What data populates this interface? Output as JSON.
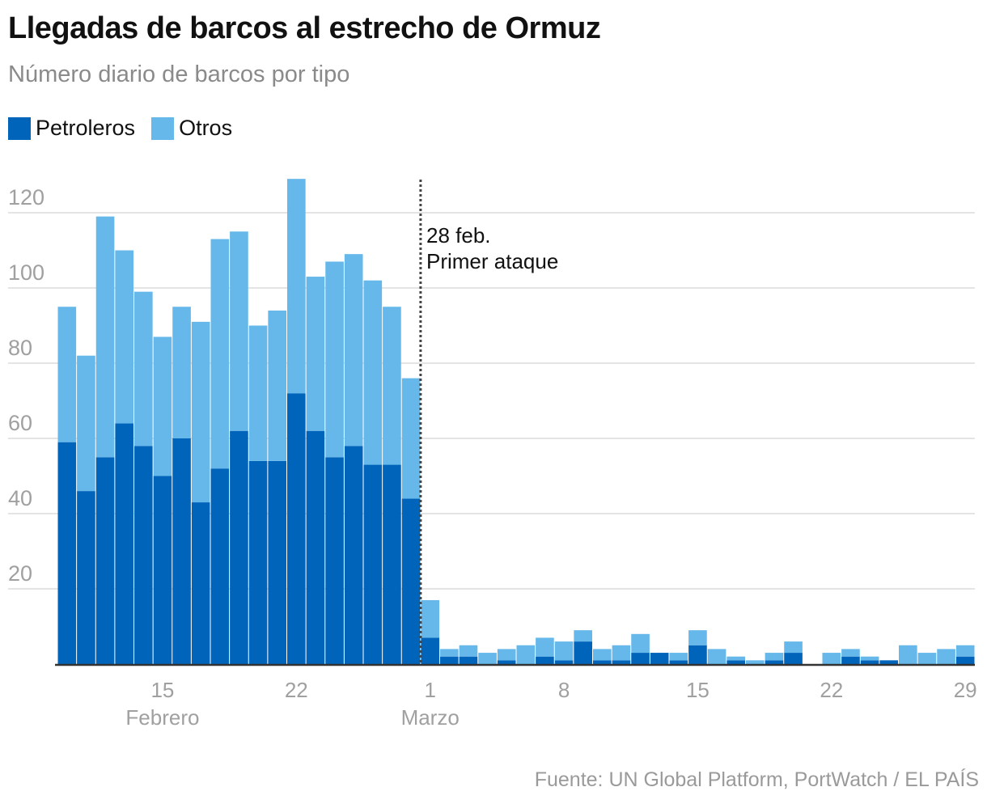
{
  "chart_data": {
    "type": "bar",
    "stacked": true,
    "title": "Llegadas de barcos al estrecho de Ormuz",
    "subtitle": "Número diario de barcos por tipo",
    "ylim": [
      0,
      130
    ],
    "yticks": [
      20,
      40,
      60,
      80,
      100,
      120
    ],
    "grid": true,
    "legend_placement": "top-left",
    "categories": [
      "10 feb",
      "11 feb",
      "12 feb",
      "13 feb",
      "14 feb",
      "15 feb",
      "16 feb",
      "17 feb",
      "18 feb",
      "19 feb",
      "20 feb",
      "21 feb",
      "22 feb",
      "23 feb",
      "24 feb",
      "25 feb",
      "26 feb",
      "27 feb",
      "28 feb",
      "1 mar",
      "2 mar",
      "3 mar",
      "4 mar",
      "5 mar",
      "6 mar",
      "7 mar",
      "8 mar",
      "9 mar",
      "10 mar",
      "11 mar",
      "12 mar",
      "13 mar",
      "14 mar",
      "15 mar",
      "16 mar",
      "17 mar",
      "18 mar",
      "19 mar",
      "20 mar",
      "21 mar",
      "22 mar",
      "23 mar",
      "24 mar",
      "25 mar",
      "26 mar",
      "27 mar",
      "28 mar",
      "29 mar"
    ],
    "series": [
      {
        "name": "Petroleros",
        "color": "#0064bb",
        "values": [
          59,
          46,
          55,
          64,
          58,
          50,
          60,
          43,
          52,
          62,
          54,
          54,
          72,
          62,
          55,
          58,
          53,
          53,
          44,
          7,
          2,
          2,
          0,
          1,
          0,
          2,
          1,
          6,
          1,
          1,
          3,
          3,
          1,
          5,
          0,
          1,
          0,
          1,
          3,
          0,
          0,
          2,
          1,
          1,
          0,
          0,
          0,
          2
        ]
      },
      {
        "name": "Otros",
        "color": "#66b8ea",
        "values": [
          36,
          36,
          64,
          46,
          41,
          37,
          35,
          48,
          61,
          53,
          36,
          40,
          57,
          41,
          52,
          51,
          49,
          42,
          32,
          10,
          2,
          3,
          3,
          3,
          5,
          5,
          5,
          3,
          3,
          4,
          5,
          0,
          2,
          4,
          4,
          1,
          1,
          2,
          3,
          0,
          3,
          2,
          1,
          0,
          5,
          3,
          4,
          3
        ]
      }
    ],
    "xtick_labels": [
      {
        "index": 5,
        "label": "15",
        "month": "Febrero"
      },
      {
        "index": 12,
        "label": "22"
      },
      {
        "index": 19,
        "label": "1",
        "month": "Marzo"
      },
      {
        "index": 26,
        "label": "8"
      },
      {
        "index": 33,
        "label": "15"
      },
      {
        "index": 40,
        "label": "22"
      },
      {
        "index": 47,
        "label": "29"
      }
    ],
    "annotation": {
      "after_index": 18,
      "lines": [
        "28 feb.",
        "Primer ataque"
      ]
    }
  },
  "source": "Fuente: UN Global Platform, PortWatch / EL PAÍS"
}
